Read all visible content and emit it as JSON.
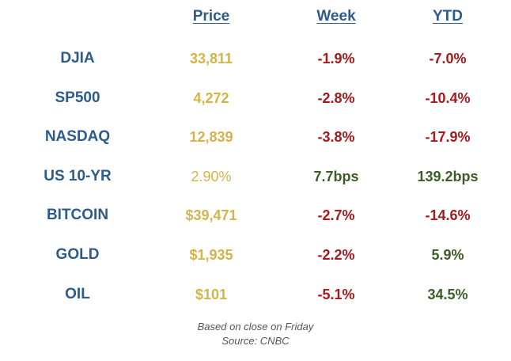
{
  "headers": {
    "price": "Price",
    "week": "Week",
    "ytd": "YTD"
  },
  "rows": [
    {
      "name": "DJIA",
      "price": "33,811",
      "week": "-1.9%",
      "week_status": "neg",
      "ytd": "-7.0%",
      "ytd_status": "neg"
    },
    {
      "name": "SP500",
      "price": "4,272",
      "week": "-2.8%",
      "week_status": "neg",
      "ytd": "-10.4%",
      "ytd_status": "neg"
    },
    {
      "name": "NASDAQ",
      "price": "12,839",
      "week": "-3.8%",
      "week_status": "neg",
      "ytd": "-17.9%",
      "ytd_status": "neg"
    },
    {
      "name": "US 10-YR",
      "price": "2.90%",
      "week": "7.7bps",
      "week_status": "pos",
      "ytd": "139.2bps",
      "ytd_status": "pos"
    },
    {
      "name": "BITCOIN",
      "price": "$39,471",
      "week": "-2.7%",
      "week_status": "neg",
      "ytd": "-14.6%",
      "ytd_status": "neg"
    },
    {
      "name": "GOLD",
      "price": "$1,935",
      "week": "-2.2%",
      "week_status": "neg",
      "ytd": "5.9%",
      "ytd_status": "pos"
    },
    {
      "name": "OIL",
      "price": "$101",
      "week": "-5.1%",
      "week_status": "neg",
      "ytd": "34.5%",
      "ytd_status": "pos"
    }
  ],
  "footer": {
    "line1": "Based on close on Friday",
    "line2": "Source: CNBC"
  },
  "colors": {
    "name": "#2d5b8a",
    "price": "#d4b44a",
    "negative": "#a6191c",
    "positive": "#3b5e26"
  }
}
